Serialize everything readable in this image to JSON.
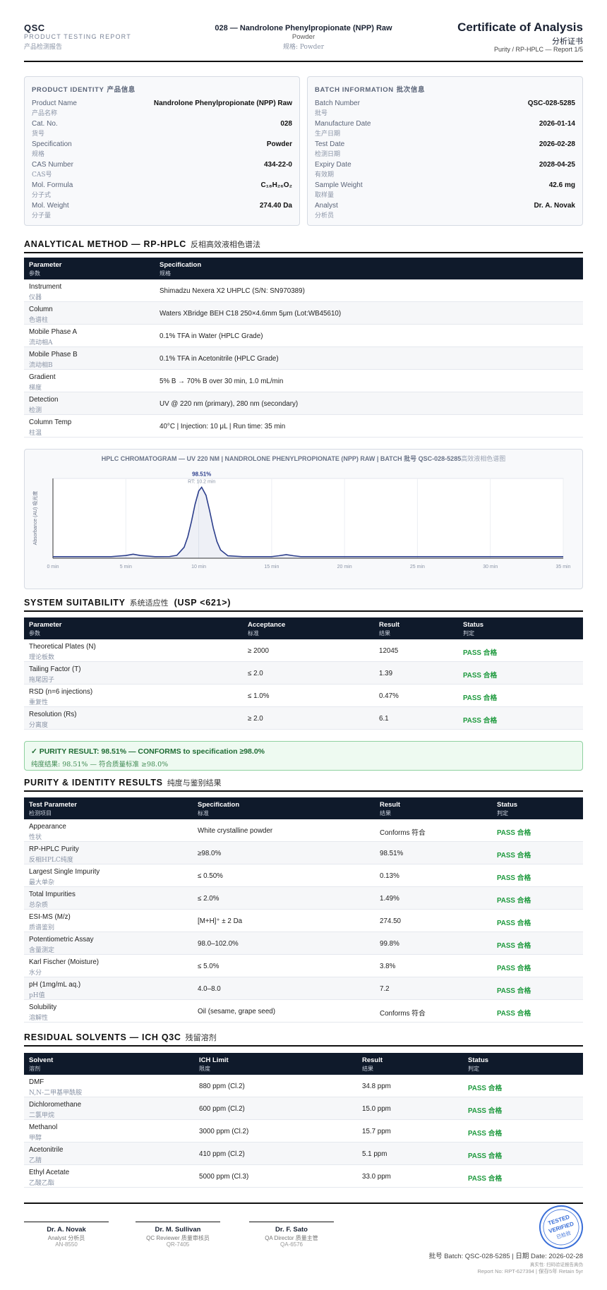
{
  "header": {
    "brand": "QSC",
    "subtitle": "PRODUCT TESTING REPORT",
    "subtitle_cn": "产品检测报告",
    "product": "028 — Nandrolone Phenylpropionate (NPP) Raw",
    "form": "Powder",
    "form_cn": "规格: Powder",
    "title": "Certificate of Analysis",
    "title_cn": "分析证书",
    "report": "Purity / RP-HPLC — Report 1/5"
  },
  "product_identity": {
    "title": "PRODUCT IDENTITY",
    "title_cn": "产品信息",
    "rows": [
      {
        "label": "Product Name",
        "label_cn": "产品名称",
        "value": "Nandrolone Phenylpropionate (NPP) Raw"
      },
      {
        "label": "Cat. No.",
        "label_cn": "货号",
        "value": "028"
      },
      {
        "label": "Specification",
        "label_cn": "规格",
        "value": "Powder"
      },
      {
        "label": "CAS Number",
        "label_cn": "CAS号",
        "value": "434-22-0"
      },
      {
        "label": "Mol. Formula",
        "label_cn": "分子式",
        "value": "C₁₈H₂₆O₂"
      },
      {
        "label": "Mol. Weight",
        "label_cn": "分子量",
        "value": "274.40 Da"
      }
    ]
  },
  "batch_information": {
    "title": "BATCH INFORMATION",
    "title_cn": "批次信息",
    "rows": [
      {
        "label": "Batch Number",
        "label_cn": "批号",
        "value": "QSC-028-5285"
      },
      {
        "label": "Manufacture Date",
        "label_cn": "生产日期",
        "value": "2026-01-14"
      },
      {
        "label": "Test Date",
        "label_cn": "检测日期",
        "value": "2026-02-28"
      },
      {
        "label": "Expiry Date",
        "label_cn": "有效期",
        "value": "2028-04-25"
      },
      {
        "label": "Sample Weight",
        "label_cn": "取样量",
        "value": "42.6 mg"
      },
      {
        "label": "Analyst",
        "label_cn": "分析员",
        "value": "Dr. A. Novak"
      }
    ]
  },
  "analytical_method": {
    "title": "ANALYTICAL METHOD — RP-HPLC",
    "title_cn": "反相高效液相色谱法",
    "columns": [
      {
        "en": "Parameter",
        "cn": "参数"
      },
      {
        "en": "Specification",
        "cn": "规格"
      }
    ],
    "rows": [
      {
        "label": "Instrument",
        "label_cn": "仪器",
        "cells": [
          "Shimadzu Nexera X2 UHPLC (S/N: SN970389)"
        ]
      },
      {
        "label": "Column",
        "label_cn": "色谱柱",
        "cells": [
          "Waters XBridge BEH C18 250×4.6mm 5μm (Lot:WB45610)"
        ]
      },
      {
        "label": "Mobile Phase A",
        "label_cn": "流动相A",
        "cells": [
          "0.1% TFA in Water (HPLC Grade)"
        ]
      },
      {
        "label": "Mobile Phase B",
        "label_cn": "流动相B",
        "cells": [
          "0.1% TFA in Acetonitrile (HPLC Grade)"
        ]
      },
      {
        "label": "Gradient",
        "label_cn": "梯度",
        "cells": [
          "5% B → 70% B over 30 min, 1.0 mL/min"
        ]
      },
      {
        "label": "Detection",
        "label_cn": "检测",
        "cells": [
          "UV @ 220 nm (primary), 280 nm (secondary)"
        ]
      },
      {
        "label": "Column Temp",
        "label_cn": "柱温",
        "cells": [
          "40°C | Injection: 10 μL | Run time: 35 min"
        ]
      }
    ]
  },
  "chart_data": {
    "type": "line",
    "title": "HPLC CHROMATOGRAM — UV 220 NM | NANDROLONE PHENYLPROPIONATE (NPP) RAW | BATCH 批号 QSC-028-5285",
    "title_cn": "高效液相色谱图",
    "y_label": "Absorbance (AU) 吸光度",
    "color": "#2c3e8c",
    "grid": true,
    "peak_label": "98.51%",
    "peak_rt": "RT: 10.2 min",
    "x": [
      0,
      1,
      2,
      3,
      4,
      5,
      5.5,
      6,
      7,
      8,
      8.5,
      9,
      9.25,
      9.5,
      9.75,
      10,
      10.2,
      10.5,
      10.75,
      11,
      11.25,
      11.5,
      12,
      13,
      14,
      15,
      15.5,
      16,
      16.5,
      17,
      18,
      20,
      22,
      25,
      28,
      30,
      33,
      35
    ],
    "values": [
      0.02,
      0.02,
      0.02,
      0.02,
      0.02,
      0.034,
      0.05,
      0.034,
      0.02,
      0.021,
      0.036,
      0.138,
      0.269,
      0.46,
      0.677,
      0.843,
      0.89,
      0.788,
      0.592,
      0.378,
      0.208,
      0.103,
      0.03,
      0.02,
      0.02,
      0.02,
      0.031,
      0.045,
      0.031,
      0.02,
      0.02,
      0.02,
      0.02,
      0.02,
      0.02,
      0.02,
      0.02,
      0.02
    ],
    "xlim": [
      0,
      35
    ],
    "ylim": [
      0,
      1
    ],
    "xticks": [
      {
        "value": 0,
        "label": "0 min"
      },
      {
        "value": 5,
        "label": "5 min"
      },
      {
        "value": 10,
        "label": "10 min"
      },
      {
        "value": 15,
        "label": "15 min"
      },
      {
        "value": 20,
        "label": "20 min"
      },
      {
        "value": 25,
        "label": "25 min"
      },
      {
        "value": 30,
        "label": "30 min"
      },
      {
        "value": 35,
        "label": "35 min"
      }
    ]
  },
  "system_suitability": {
    "title": "SYSTEM SUITABILITY",
    "title_cn": "系统适应性",
    "title_note": "(USP <621>)",
    "columns": [
      {
        "en": "Parameter",
        "cn": "参数"
      },
      {
        "en": "Acceptance",
        "cn": "标准"
      },
      {
        "en": "Result",
        "cn": "结果"
      },
      {
        "en": "Status",
        "cn": "判定"
      }
    ],
    "rows": [
      {
        "label": "Theoretical Plates (N)",
        "label_cn": "理论板数",
        "cells": [
          "≥ 2000",
          "12045",
          "PASS 合格"
        ]
      },
      {
        "label": "Tailing Factor (T)",
        "label_cn": "拖尾因子",
        "cells": [
          "≤ 2.0",
          "1.39",
          "PASS 合格"
        ]
      },
      {
        "label": "RSD (n=6 injections)",
        "label_cn": "重复性",
        "cells": [
          "≤ 1.0%",
          "0.47%",
          "PASS 合格"
        ]
      },
      {
        "label": "Resolution (Rs)",
        "label_cn": "分离度",
        "cells": [
          "≥ 2.0",
          "6.1",
          "PASS 合格"
        ]
      }
    ]
  },
  "purity_banner": {
    "text": "✓ PURITY RESULT: 98.51% — CONFORMS to specification ≥98.0%",
    "text_cn": "纯度结果: 98.51% — 符合质量标准 ≥98.0%"
  },
  "purity_identity": {
    "title": "PURITY & IDENTITY RESULTS",
    "title_cn": "纯度与鉴别结果",
    "columns": [
      {
        "en": "Test Parameter",
        "cn": "检测项目"
      },
      {
        "en": "Specification",
        "cn": "标准"
      },
      {
        "en": "Result",
        "cn": "结果"
      },
      {
        "en": "Status",
        "cn": "判定"
      }
    ],
    "rows": [
      {
        "label": "Appearance",
        "label_cn": "性状",
        "cells": [
          "White crystalline powder",
          "Conforms 符合",
          "PASS 合格"
        ]
      },
      {
        "label": "RP-HPLC Purity",
        "label_cn": "反相HPLC纯度",
        "cells": [
          "≥98.0%",
          "98.51%",
          "PASS 合格"
        ]
      },
      {
        "label": "Largest Single Impurity",
        "label_cn": "最大单杂",
        "cells": [
          "≤ 0.50%",
          "0.13%",
          "PASS 合格"
        ]
      },
      {
        "label": "Total Impurities",
        "label_cn": "总杂质",
        "cells": [
          "≤ 2.0%",
          "1.49%",
          "PASS 合格"
        ]
      },
      {
        "label": "ESI-MS (M/z)",
        "label_cn": "质谱鉴别",
        "cells": [
          "[M+H]⁺ ± 2 Da",
          "274.50",
          "PASS 合格"
        ]
      },
      {
        "label": "Potentiometric Assay",
        "label_cn": "含量测定",
        "cells": [
          "98.0–102.0%",
          "99.8%",
          "PASS 合格"
        ]
      },
      {
        "label": "Karl Fischer (Moisture)",
        "label_cn": "水分",
        "cells": [
          "≤ 5.0%",
          "3.8%",
          "PASS 合格"
        ]
      },
      {
        "label": "pH (1mg/mL aq.)",
        "label_cn": "pH值",
        "cells": [
          "4.0–8.0",
          "7.2",
          "PASS 合格"
        ]
      },
      {
        "label": "Solubility",
        "label_cn": "溶解性",
        "cells": [
          "Oil (sesame, grape seed)",
          "Conforms 符合",
          "PASS 合格"
        ]
      }
    ]
  },
  "residual_solvents": {
    "title": "RESIDUAL SOLVENTS — ICH Q3C",
    "title_cn": "残留溶剂",
    "columns": [
      {
        "en": "Solvent",
        "cn": "溶剂"
      },
      {
        "en": "ICH Limit",
        "cn": "限度"
      },
      {
        "en": "Result",
        "cn": "结果"
      },
      {
        "en": "Status",
        "cn": "判定"
      }
    ],
    "rows": [
      {
        "label": "DMF",
        "label_cn": "N,N-二甲基甲酰胺",
        "cells": [
          "880 ppm (Cl.2)",
          "34.8 ppm",
          "PASS 合格"
        ]
      },
      {
        "label": "Dichloromethane",
        "label_cn": "二氯甲烷",
        "cells": [
          "600 ppm (Cl.2)",
          "15.0 ppm",
          "PASS 合格"
        ]
      },
      {
        "label": "Methanol",
        "label_cn": "甲醇",
        "cells": [
          "3000 ppm (Cl.2)",
          "15.7 ppm",
          "PASS 合格"
        ]
      },
      {
        "label": "Acetonitrile",
        "label_cn": "乙腈",
        "cells": [
          "410 ppm (Cl.2)",
          "5.1 ppm",
          "PASS 合格"
        ]
      },
      {
        "label": "Ethyl Acetate",
        "label_cn": "乙酸乙酯",
        "cells": [
          "5000 ppm (Cl.3)",
          "33.0 ppm",
          "PASS 合格"
        ]
      }
    ]
  },
  "signatures": [
    {
      "name": "Dr. A. Novak",
      "role": "Analyst 分析员",
      "id": "AN-8550"
    },
    {
      "name": "Dr. M. Sullivan",
      "role": "QC Reviewer 质量审核员",
      "id": "QR-7405"
    },
    {
      "name": "Dr. F. Sato",
      "role": "QA Director 质量主管",
      "id": "QA-6576"
    }
  ],
  "stamp": {
    "line1": "TESTED",
    "line2": "VERIFIED",
    "line3": "已检验"
  },
  "footer": {
    "batch_date": "批号 Batch: QSC-028-5285 | 日期 Date: 2026-02-28",
    "note": "真实性: 扫码验证报告真伪",
    "report_no": "Report No: RPT-627394 | 保存5年 Retain 5yr"
  }
}
